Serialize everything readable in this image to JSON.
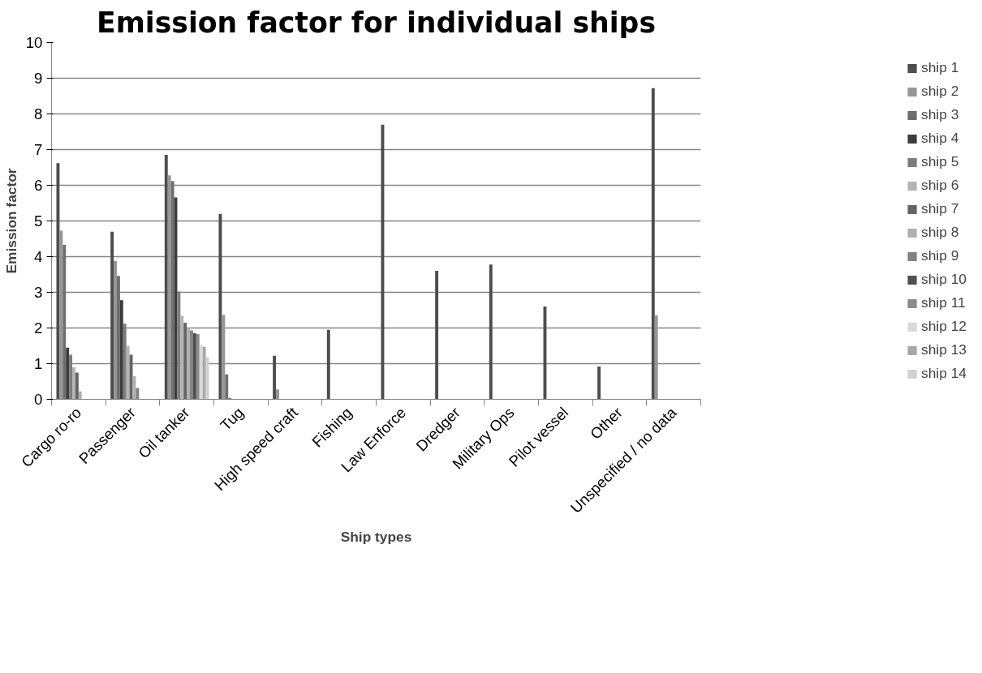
{
  "chart_data": {
    "type": "bar",
    "title": "Emission factor for individual ships",
    "xlabel": "Ship types",
    "ylabel": "Emission factor",
    "categories": [
      "Cargo ro-ro",
      "Passenger",
      "Oil tanker",
      "Tug",
      "High speed craft",
      "Fishing",
      "Law Enforce",
      "Dredger",
      "Military Ops",
      "Pilot vessel",
      "Other",
      "Unspecified / no data"
    ],
    "ylim": [
      0,
      10
    ],
    "yticks": [
      0,
      1,
      2,
      3,
      4,
      5,
      6,
      7,
      8,
      9,
      10
    ],
    "grid": "y",
    "legend": "right",
    "series": [
      {
        "name": "ship 1",
        "color": "#4d4d4d",
        "values": [
          6.62,
          4.7,
          6.85,
          5.2,
          1.22,
          1.95,
          7.7,
          3.6,
          3.78,
          2.6,
          0.92,
          8.72
        ]
      },
      {
        "name": "ship 2",
        "color": "#969696",
        "values": [
          4.73,
          3.88,
          6.28,
          2.37,
          0.28,
          null,
          null,
          null,
          null,
          null,
          null,
          2.35
        ]
      },
      {
        "name": "ship 3",
        "color": "#6e6e6e",
        "values": [
          4.33,
          3.46,
          6.12,
          0.7,
          null,
          null,
          null,
          null,
          null,
          null,
          null,
          null
        ]
      },
      {
        "name": "ship 4",
        "color": "#3c3c3c",
        "values": [
          1.45,
          2.78,
          5.66,
          0.03,
          null,
          null,
          null,
          null,
          null,
          null,
          null,
          null
        ]
      },
      {
        "name": "ship 5",
        "color": "#7d7d7d",
        "values": [
          1.25,
          2.12,
          3.02,
          null,
          null,
          null,
          null,
          null,
          null,
          null,
          null,
          null
        ]
      },
      {
        "name": "ship 6",
        "color": "#b4b4b4",
        "values": [
          0.9,
          1.5,
          2.34,
          null,
          null,
          null,
          null,
          null,
          null,
          null,
          null,
          null
        ]
      },
      {
        "name": "ship 7",
        "color": "#646464",
        "values": [
          0.75,
          1.25,
          2.15,
          null,
          null,
          null,
          null,
          null,
          null,
          null,
          null,
          null
        ]
      },
      {
        "name": "ship 8",
        "color": "#b0b0b0",
        "values": [
          0.22,
          0.65,
          2.0,
          null,
          null,
          null,
          null,
          null,
          null,
          null,
          null,
          null
        ]
      },
      {
        "name": "ship 9",
        "color": "#828282",
        "values": [
          null,
          0.32,
          1.93,
          null,
          null,
          null,
          null,
          null,
          null,
          null,
          null,
          null
        ]
      },
      {
        "name": "ship 10",
        "color": "#505050",
        "values": [
          null,
          null,
          1.85,
          null,
          null,
          null,
          null,
          null,
          null,
          null,
          null,
          null
        ]
      },
      {
        "name": "ship 11",
        "color": "#8c8c8c",
        "values": [
          null,
          null,
          1.83,
          null,
          null,
          null,
          null,
          null,
          null,
          null,
          null,
          null
        ]
      },
      {
        "name": "ship 12",
        "color": "#d9d9d9",
        "values": [
          null,
          null,
          1.52,
          null,
          null,
          null,
          null,
          null,
          null,
          null,
          null,
          null
        ]
      },
      {
        "name": "ship 13",
        "color": "#a8a8a8",
        "values": [
          null,
          null,
          1.47,
          null,
          null,
          null,
          null,
          null,
          null,
          null,
          null,
          null
        ]
      },
      {
        "name": "ship 14",
        "color": "#d0d0d0",
        "values": [
          null,
          null,
          1.18,
          null,
          null,
          null,
          null,
          null,
          null,
          null,
          null,
          null
        ]
      }
    ]
  }
}
